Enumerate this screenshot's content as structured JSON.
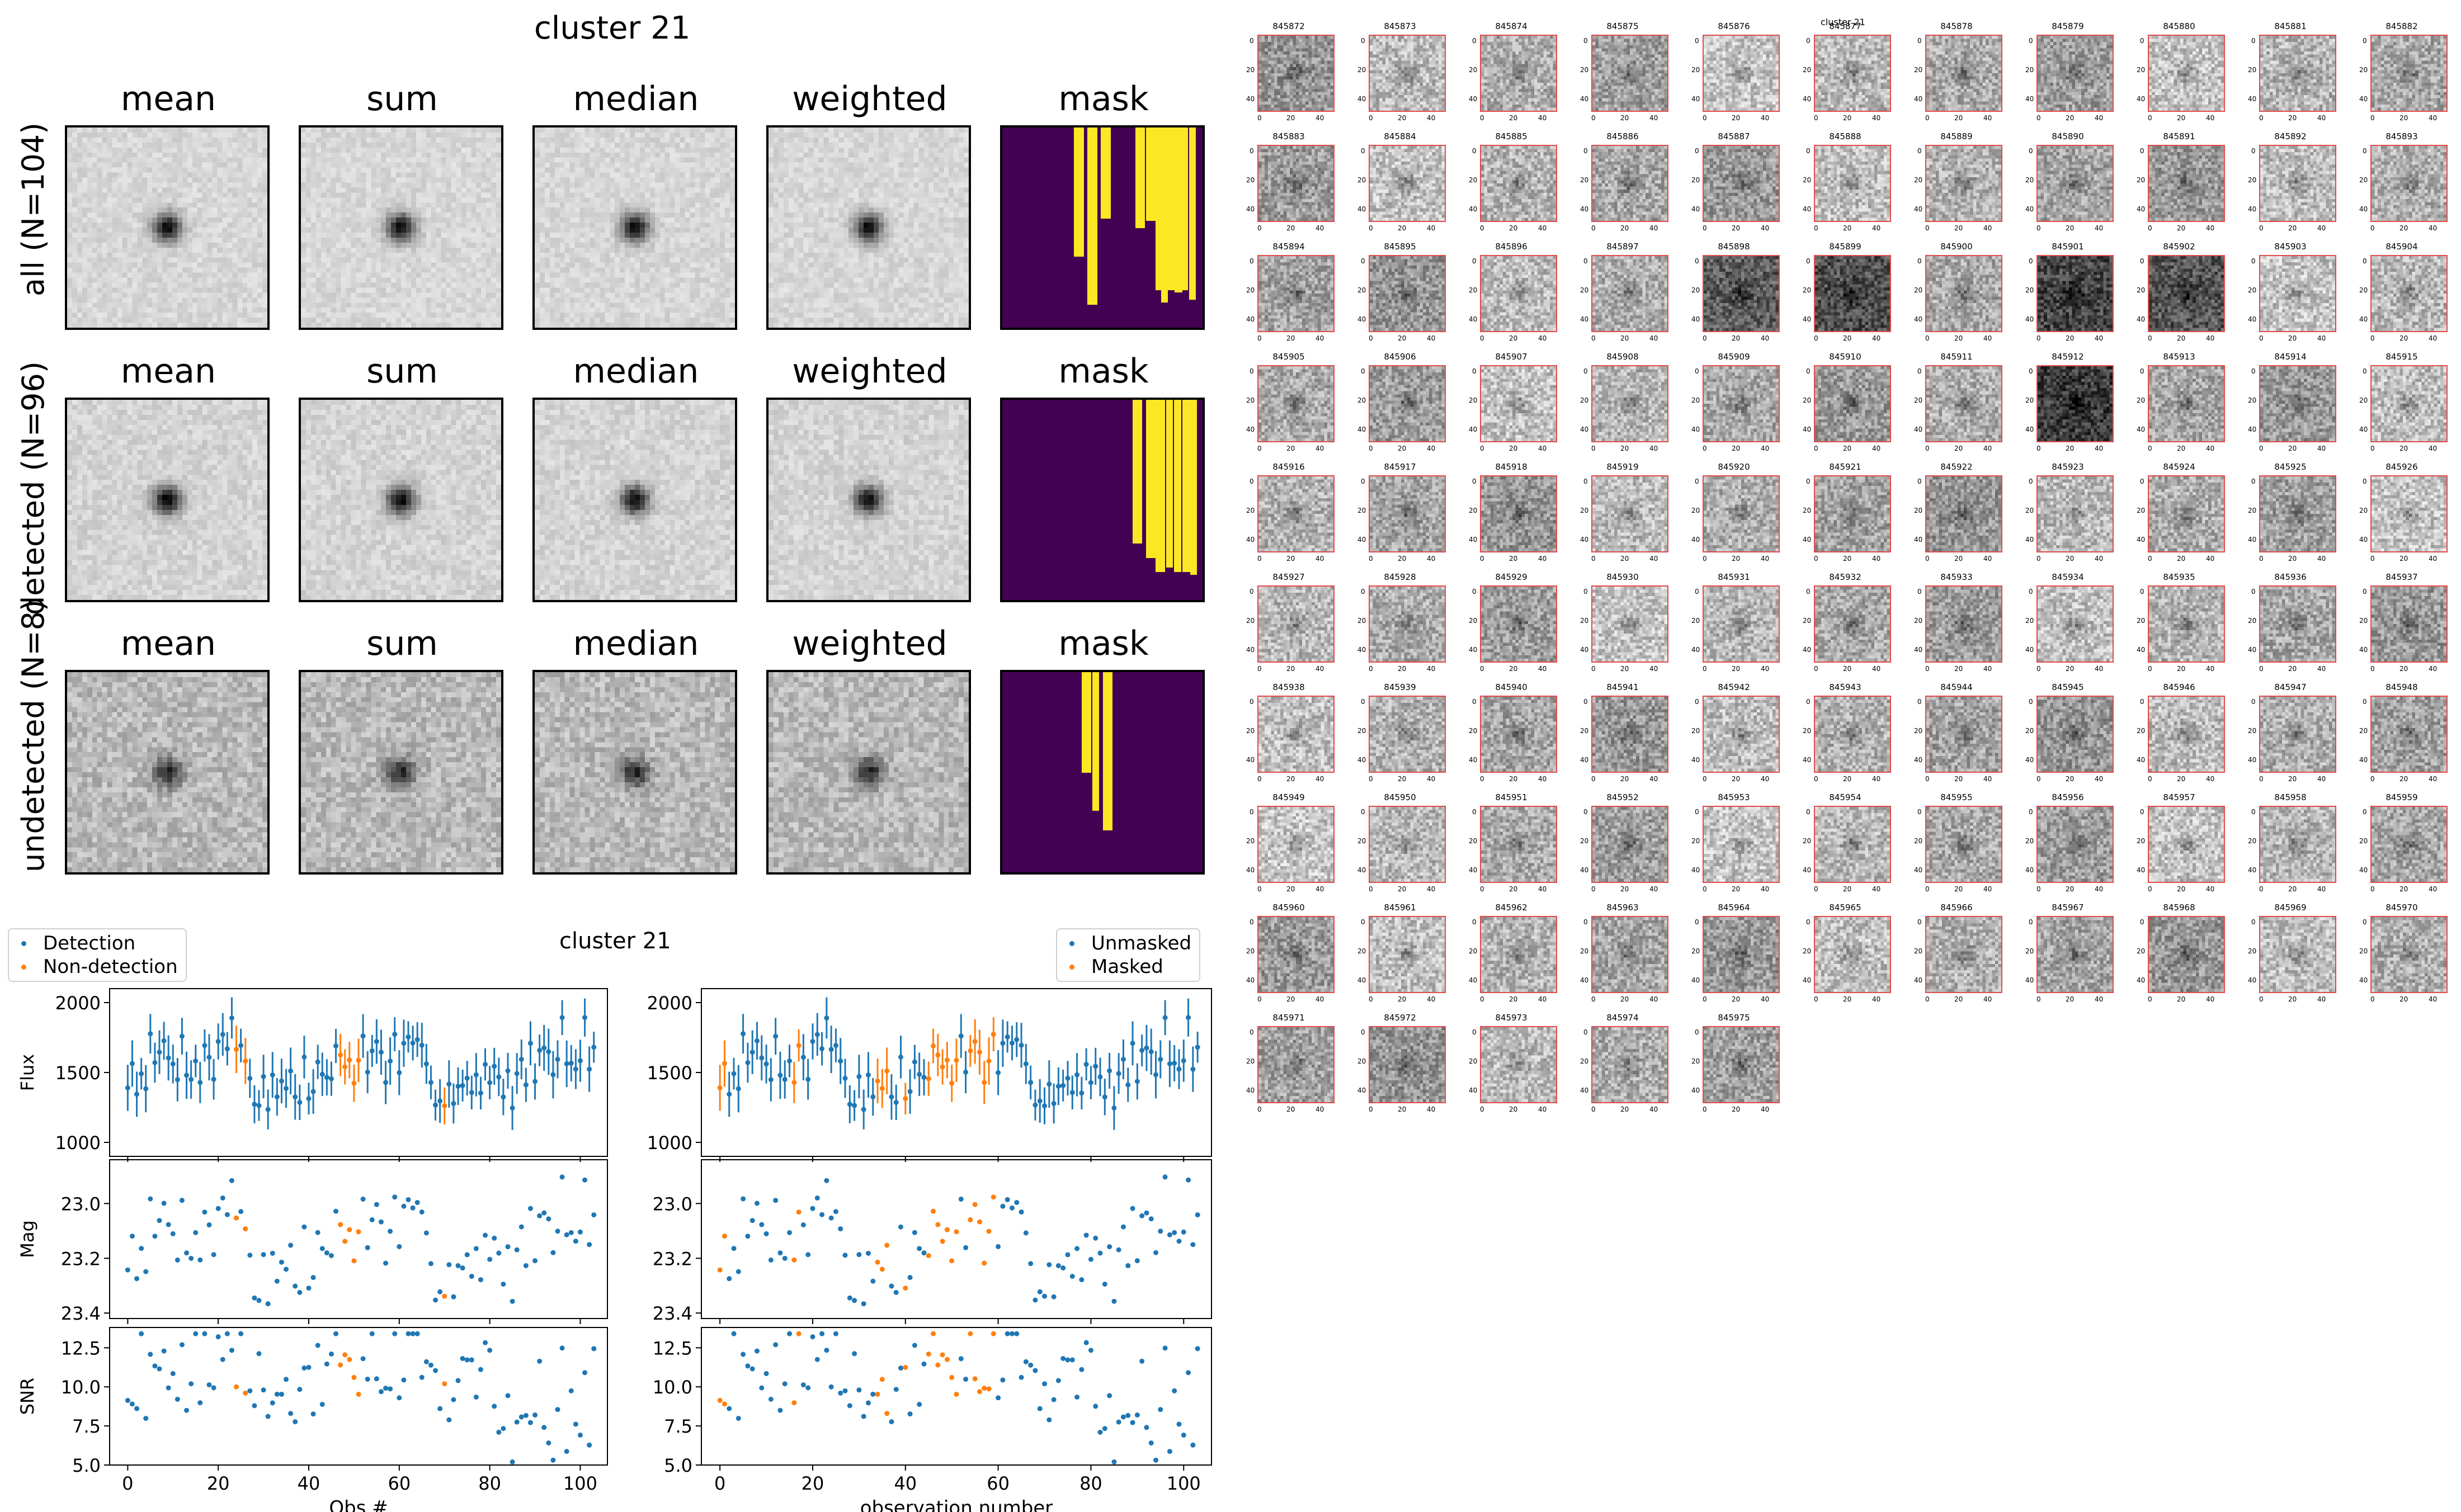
{
  "left_top": {
    "title": "cluster 21",
    "column_titles": [
      "mean",
      "sum",
      "median",
      "weighted",
      "mask"
    ],
    "rows": [
      {
        "label": "all (N=104)"
      },
      {
        "label": "detected (N=96)"
      },
      {
        "label": "undetected (N=8)"
      }
    ]
  },
  "lightcurves": {
    "title": "cluster 21",
    "left_legend": [
      {
        "label": "Detection",
        "color": "#1f77b4"
      },
      {
        "label": "Non-detection",
        "color": "#ff7f0e"
      }
    ],
    "right_legend": [
      {
        "label": "Unmasked",
        "color": "#1f77b4"
      },
      {
        "label": "Masked",
        "color": "#ff7f0e"
      }
    ],
    "left_xlabel": "Obs #",
    "right_xlabel": "observation number"
  },
  "chart_data": [
    {
      "type": "scatter",
      "panel": "flux",
      "ylabel": "Flux",
      "xlim": [
        -4,
        106
      ],
      "ylim": [
        900,
        2100
      ],
      "yticks": [
        "1000",
        "1500",
        "2000"
      ],
      "xticks": [
        "0",
        "20",
        "40",
        "60",
        "80",
        "100"
      ],
      "series": [
        {
          "name": "Detection",
          "color": "#1f77b4"
        },
        {
          "name": "Non-detection",
          "color": "#ff7f0e"
        }
      ]
    },
    {
      "type": "scatter",
      "panel": "mag",
      "ylabel": "Mag",
      "ylim": [
        23.42,
        22.84
      ],
      "yticks": [
        "23.0",
        "23.2",
        "23.4"
      ]
    },
    {
      "type": "scatter",
      "panel": "snr",
      "ylabel": "SNR",
      "ylim": [
        5.0,
        13.8
      ],
      "yticks": [
        "5.0",
        "7.5",
        "10.0",
        "12.5"
      ]
    }
  ],
  "tiles": {
    "title": "cluster 21",
    "ids": [
      "845872",
      "845873",
      "845874",
      "845875",
      "845876",
      "845877",
      "845878",
      "845879",
      "845880",
      "845881",
      "845882",
      "845883",
      "845884",
      "845885",
      "845886",
      "845887",
      "845888",
      "845889",
      "845890",
      "845891",
      "845892",
      "845893",
      "845894",
      "845895",
      "845896",
      "845897",
      "845898",
      "845899",
      "845900",
      "845901",
      "845902",
      "845903",
      "845904",
      "845905",
      "845906",
      "845907",
      "845908",
      "845909",
      "845910",
      "845911",
      "845912",
      "845913",
      "845914",
      "845915",
      "845916",
      "845917",
      "845918",
      "845919",
      "845920",
      "845921",
      "845922",
      "845923",
      "845924",
      "845925",
      "845926",
      "845927",
      "845928",
      "845929",
      "845930",
      "845931",
      "845932",
      "845933",
      "845934",
      "845935",
      "845936",
      "845937",
      "845938",
      "845939",
      "845940",
      "845941",
      "845942",
      "845943",
      "845944",
      "845945",
      "845946",
      "845947",
      "845948",
      "845949",
      "845950",
      "845951",
      "845952",
      "845953",
      "845954",
      "845955",
      "845956",
      "845957",
      "845958",
      "845959",
      "845960",
      "845961",
      "845962",
      "845963",
      "845964",
      "845965",
      "845966",
      "845967",
      "845968",
      "845969",
      "845970",
      "845971",
      "845972",
      "845973",
      "845974",
      "845975"
    ],
    "yticks": [
      "0",
      "20",
      "40"
    ],
    "xticks": [
      "0",
      "20",
      "40"
    ]
  }
}
